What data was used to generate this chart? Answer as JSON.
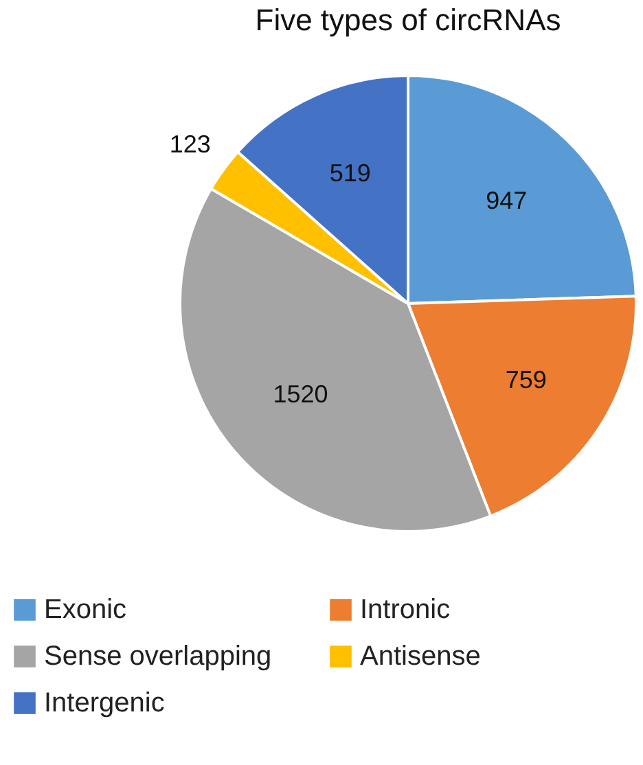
{
  "chart_data": {
    "type": "pie",
    "title": "Five types of circRNAs",
    "categories": [
      "Exonic",
      "Intronic",
      "Sense overlapping",
      "Antisense",
      "Intergenic"
    ],
    "values": [
      947,
      759,
      1520,
      123,
      519
    ],
    "colors": [
      "#5b9bd5",
      "#ed7d31",
      "#a5a5a5",
      "#ffc000",
      "#4472c4"
    ],
    "data_labels": true,
    "legend": "bottom"
  }
}
